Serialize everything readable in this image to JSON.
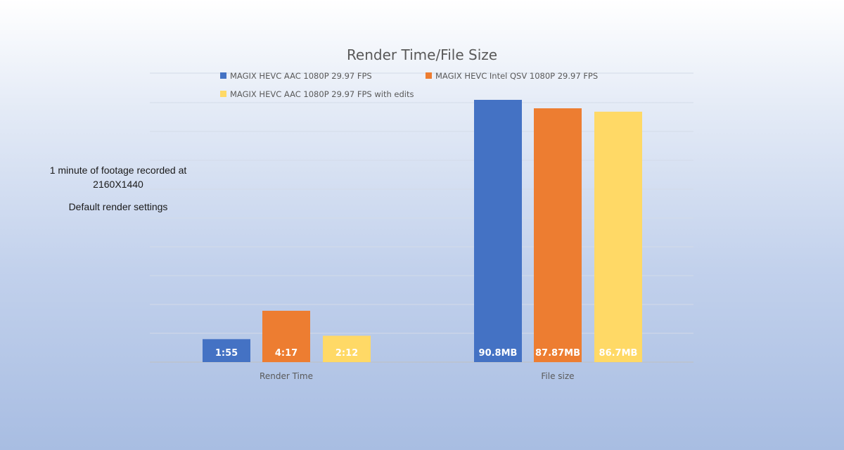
{
  "chart_data": {
    "type": "bar",
    "title": "Render Time/File Size",
    "categories": [
      "Render Time",
      "File size"
    ],
    "series": [
      {
        "name": "MAGIX HEVC AAC 1080P 29.97 FPS",
        "color": "#4472c4",
        "values": [
          115,
          90.8
        ],
        "labels": [
          "1:55",
          "90.8MB"
        ]
      },
      {
        "name": "MAGIX HEVC Intel QSV 1080P 29.97 FPS",
        "color": "#ed7d31",
        "values": [
          257,
          87.87
        ],
        "labels": [
          "4:17",
          "87.87MB"
        ]
      },
      {
        "name": "MAGIX HEVC AAC 1080P 29.97 FPS with edits",
        "color": "#ffd966",
        "values": [
          132,
          86.7
        ],
        "labels": [
          "2:12",
          "86.7MB"
        ]
      }
    ],
    "grid": true,
    "legend_position": "top"
  },
  "notes": {
    "line1": "1 minute of footage recorded at",
    "line2": "2160X1440",
    "line3": "Default render settings"
  }
}
